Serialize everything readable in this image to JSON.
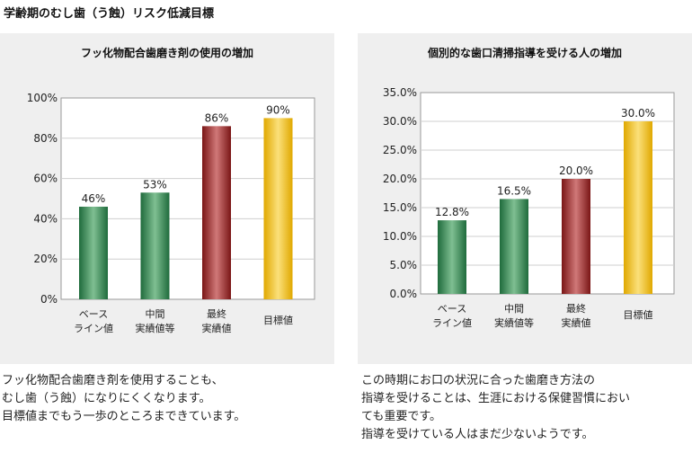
{
  "page_title": "学齢期のむし歯（う蝕）リスク低減目標",
  "colors": {
    "green_dark": "#1f6b3c",
    "green_light": "#7fbf92",
    "red_dark": "#7a1616",
    "red_light": "#d07878",
    "gold_dark": "#e0a800",
    "gold_light": "#fbe07a",
    "panel_bg": "#efefef"
  },
  "chart_data": [
    {
      "type": "bar",
      "title": "フッ化物配合歯磨き剤の使用の増加",
      "categories": [
        [
          "ベース",
          "ライン値"
        ],
        [
          "中間",
          "実績値等"
        ],
        [
          "最終",
          "実績値"
        ],
        [
          "目標値"
        ]
      ],
      "values": [
        46,
        53,
        86,
        90
      ],
      "value_labels": [
        "46%",
        "53%",
        "86%",
        "90%"
      ],
      "bar_colors": [
        "green",
        "green",
        "red",
        "gold"
      ],
      "yticks": [
        "0%",
        "20%",
        "40%",
        "60%",
        "80%",
        "100%"
      ],
      "ylim": [
        0,
        100
      ],
      "grid": true
    },
    {
      "type": "bar",
      "title": "個別的な歯口清掃指導を受ける人の増加",
      "categories": [
        [
          "ベース",
          "ライン値"
        ],
        [
          "中間",
          "実績値等"
        ],
        [
          "最終",
          "実績値"
        ],
        [
          "目標値"
        ]
      ],
      "values": [
        12.8,
        16.5,
        20.0,
        30.0
      ],
      "value_labels": [
        "12.8%",
        "16.5%",
        "20.0%",
        "30.0%"
      ],
      "bar_colors": [
        "green",
        "green",
        "red",
        "gold"
      ],
      "yticks": [
        "0.0%",
        "5.0%",
        "10.0%",
        "15.0%",
        "20.0%",
        "25.0%",
        "30.0%",
        "35.0%"
      ],
      "ylim": [
        0,
        35
      ],
      "grid": true
    }
  ],
  "captions": {
    "left": [
      "フッ化物配合歯磨き剤を使用することも、",
      "むし歯（う蝕）になりにくくなります。",
      "目標値までもう一歩のところまできています。"
    ],
    "right": [
      "この時期にお口の状況に合った歯磨き方法の",
      "指導を受けることは、生涯における保健習慣におい",
      "ても重要です。",
      "指導を受けている人はまだ少ないようです。"
    ]
  }
}
